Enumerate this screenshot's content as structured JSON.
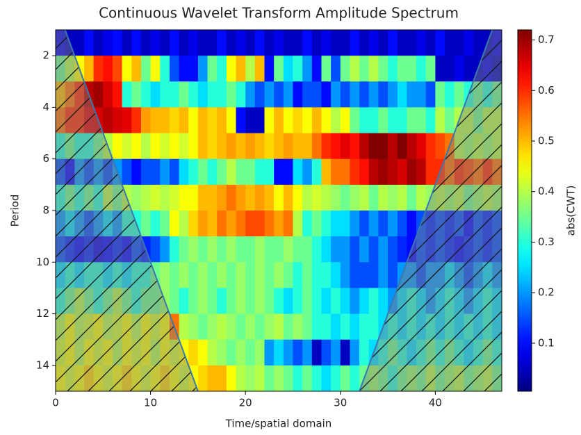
{
  "chart_data": {
    "type": "heatmap",
    "title": "Continuous Wavelet Transform Amplitude Spectrum",
    "x_label": "Time/spatial domain",
    "y_label": "Period",
    "colormap": "jet",
    "xlim": [
      0,
      47
    ],
    "ylim": [
      15,
      1
    ],
    "xticks": [
      0,
      10,
      20,
      30,
      40
    ],
    "yticks": [
      2,
      4,
      6,
      8,
      10,
      12,
      14
    ],
    "colorbar": {
      "label": "abs(CWT)",
      "lim": [
        0.005,
        0.72
      ],
      "ticks": [
        0.1,
        0.2,
        0.3,
        0.4,
        0.5,
        0.6,
        0.7
      ]
    },
    "cone_of_influence": {
      "left": {
        "x": [
          1,
          15
        ],
        "y": [
          1,
          15
        ]
      },
      "right": {
        "x": [
          46,
          32
        ],
        "y": [
          1,
          15
        ]
      }
    },
    "z": [
      [
        0.08,
        0.05,
        0.05,
        0.1,
        0.05,
        0.08,
        0.1,
        0.05,
        0.1,
        0.05,
        0.08,
        0.05,
        0.1,
        0.05,
        0.08,
        0.05,
        0.05,
        0.1,
        0.05,
        0.08,
        0.05,
        0.1,
        0.05,
        0.08,
        0.05,
        0.05,
        0.1,
        0.05,
        0.08,
        0.05,
        0.05,
        0.1,
        0.05,
        0.08,
        0.05,
        0.1,
        0.05,
        0.05,
        0.08,
        0.05,
        0.1,
        0.05,
        0.05,
        0.08,
        0.05,
        0.05,
        0.08
      ],
      [
        0.35,
        0.4,
        0.45,
        0.5,
        0.6,
        0.62,
        0.58,
        0.45,
        0.5,
        0.35,
        0.45,
        0.3,
        0.15,
        0.1,
        0.1,
        0.2,
        0.35,
        0.3,
        0.45,
        0.5,
        0.4,
        0.5,
        0.1,
        0.35,
        0.25,
        0.3,
        0.2,
        0.1,
        0.35,
        0.15,
        0.35,
        0.4,
        0.35,
        0.4,
        0.35,
        0.3,
        0.35,
        0.35,
        0.3,
        0.35,
        0.05,
        0.05,
        0.08,
        0.05,
        0.05,
        0.08,
        0.05
      ],
      [
        0.5,
        0.55,
        0.6,
        0.68,
        0.7,
        0.66,
        0.62,
        0.3,
        0.35,
        0.3,
        0.25,
        0.3,
        0.3,
        0.35,
        0.3,
        0.25,
        0.3,
        0.3,
        0.35,
        0.3,
        0.2,
        0.15,
        0.2,
        0.15,
        0.2,
        0.1,
        0.15,
        0.15,
        0.1,
        0.2,
        0.15,
        0.2,
        0.15,
        0.2,
        0.15,
        0.2,
        0.25,
        0.2,
        0.2,
        0.15,
        0.35,
        0.3,
        0.35,
        0.3,
        0.35,
        0.3,
        0.35
      ],
      [
        0.55,
        0.6,
        0.6,
        0.65,
        0.66,
        0.68,
        0.66,
        0.65,
        0.6,
        0.52,
        0.5,
        0.5,
        0.48,
        0.5,
        0.45,
        0.5,
        0.48,
        0.5,
        0.45,
        0.1,
        0.05,
        0.05,
        0.45,
        0.5,
        0.45,
        0.48,
        0.45,
        0.5,
        0.45,
        0.4,
        0.45,
        0.35,
        0.3,
        0.3,
        0.35,
        0.3,
        0.3,
        0.35,
        0.35,
        0.3,
        0.4,
        0.35,
        0.4,
        0.4,
        0.35,
        0.4,
        0.4
      ],
      [
        0.3,
        0.35,
        0.3,
        0.3,
        0.35,
        0.4,
        0.45,
        0.42,
        0.45,
        0.4,
        0.45,
        0.42,
        0.45,
        0.42,
        0.45,
        0.5,
        0.48,
        0.5,
        0.52,
        0.5,
        0.52,
        0.5,
        0.48,
        0.5,
        0.52,
        0.5,
        0.5,
        0.55,
        0.6,
        0.62,
        0.65,
        0.62,
        0.68,
        0.72,
        0.72,
        0.68,
        0.72,
        0.68,
        0.65,
        0.6,
        0.58,
        0.55,
        0.4,
        0.38,
        0.4,
        0.38,
        0.4
      ],
      [
        0.15,
        0.1,
        0.2,
        0.15,
        0.2,
        0.15,
        0.2,
        0.15,
        0.1,
        0.15,
        0.15,
        0.2,
        0.15,
        0.25,
        0.3,
        0.35,
        0.3,
        0.35,
        0.4,
        0.35,
        0.35,
        0.3,
        0.3,
        0.1,
        0.1,
        0.25,
        0.2,
        0.3,
        0.5,
        0.55,
        0.55,
        0.6,
        0.62,
        0.68,
        0.7,
        0.68,
        0.66,
        0.7,
        0.68,
        0.6,
        0.6,
        0.55,
        0.6,
        0.58,
        0.55,
        0.6,
        0.55
      ],
      [
        0.3,
        0.35,
        0.3,
        0.35,
        0.3,
        0.4,
        0.35,
        0.4,
        0.38,
        0.4,
        0.42,
        0.4,
        0.42,
        0.45,
        0.45,
        0.5,
        0.5,
        0.52,
        0.55,
        0.52,
        0.5,
        0.52,
        0.5,
        0.45,
        0.5,
        0.45,
        0.4,
        0.42,
        0.4,
        0.38,
        0.35,
        0.38,
        0.4,
        0.35,
        0.4,
        0.38,
        0.4,
        0.35,
        0.4,
        0.38,
        0.4,
        0.38,
        0.4,
        0.35,
        0.38,
        0.4,
        0.38
      ],
      [
        0.2,
        0.25,
        0.2,
        0.15,
        0.2,
        0.25,
        0.2,
        0.3,
        0.3,
        0.35,
        0.3,
        0.35,
        0.45,
        0.4,
        0.48,
        0.52,
        0.5,
        0.55,
        0.52,
        0.55,
        0.58,
        0.58,
        0.55,
        0.52,
        0.55,
        0.4,
        0.3,
        0.35,
        0.3,
        0.25,
        0.25,
        0.2,
        0.15,
        0.2,
        0.15,
        0.2,
        0.15,
        0.1,
        0.15,
        0.12,
        0.15,
        0.12,
        0.15,
        0.1,
        0.15,
        0.12,
        0.15
      ],
      [
        0.15,
        0.12,
        0.1,
        0.12,
        0.08,
        0.1,
        0.12,
        0.1,
        0.15,
        0.12,
        0.15,
        0.2,
        0.3,
        0.35,
        0.38,
        0.35,
        0.38,
        0.35,
        0.38,
        0.35,
        0.35,
        0.38,
        0.35,
        0.35,
        0.38,
        0.35,
        0.35,
        0.3,
        0.25,
        0.2,
        0.2,
        0.15,
        0.2,
        0.15,
        0.2,
        0.15,
        0.12,
        0.1,
        0.15,
        0.12,
        0.15,
        0.12,
        0.1,
        0.12,
        0.15,
        0.12,
        0.15
      ],
      [
        0.25,
        0.3,
        0.25,
        0.3,
        0.3,
        0.25,
        0.3,
        0.25,
        0.3,
        0.3,
        0.35,
        0.38,
        0.35,
        0.38,
        0.35,
        0.38,
        0.35,
        0.38,
        0.35,
        0.38,
        0.35,
        0.38,
        0.35,
        0.38,
        0.35,
        0.3,
        0.35,
        0.3,
        0.3,
        0.25,
        0.2,
        0.15,
        0.15,
        0.15,
        0.2,
        0.15,
        0.2,
        0.2,
        0.15,
        0.2,
        0.2,
        0.25,
        0.2,
        0.15,
        0.2,
        0.25,
        0.2
      ],
      [
        0.3,
        0.35,
        0.4,
        0.35,
        0.3,
        0.35,
        0.4,
        0.35,
        0.3,
        0.35,
        0.35,
        0.38,
        0.35,
        0.3,
        0.35,
        0.38,
        0.35,
        0.3,
        0.35,
        0.38,
        0.35,
        0.38,
        0.35,
        0.3,
        0.25,
        0.3,
        0.35,
        0.3,
        0.25,
        0.3,
        0.25,
        0.2,
        0.25,
        0.3,
        0.25,
        0.2,
        0.25,
        0.3,
        0.25,
        0.2,
        0.25,
        0.3,
        0.25,
        0.2,
        0.25,
        0.3,
        0.25
      ],
      [
        0.4,
        0.45,
        0.4,
        0.42,
        0.45,
        0.4,
        0.42,
        0.45,
        0.4,
        0.45,
        0.42,
        0.45,
        0.55,
        0.4,
        0.38,
        0.35,
        0.38,
        0.4,
        0.38,
        0.35,
        0.38,
        0.35,
        0.38,
        0.4,
        0.35,
        0.38,
        0.35,
        0.3,
        0.3,
        0.25,
        0.3,
        0.25,
        0.3,
        0.3,
        0.25,
        0.3,
        0.25,
        0.3,
        0.25,
        0.3,
        0.25,
        0.3,
        0.25,
        0.3,
        0.25,
        0.3,
        0.25
      ],
      [
        0.42,
        0.45,
        0.4,
        0.45,
        0.42,
        0.45,
        0.4,
        0.45,
        0.42,
        0.45,
        0.4,
        0.45,
        0.42,
        0.45,
        0.48,
        0.45,
        0.4,
        0.38,
        0.35,
        0.38,
        0.35,
        0.38,
        0.2,
        0.25,
        0.2,
        0.15,
        0.2,
        0.05,
        0.15,
        0.2,
        0.05,
        0.2,
        0.3,
        0.25,
        0.3,
        0.35,
        0.3,
        0.25,
        0.3,
        0.35,
        0.3,
        0.35,
        0.3,
        0.25,
        0.3,
        0.35,
        0.3
      ],
      [
        0.45,
        0.42,
        0.45,
        0.48,
        0.45,
        0.42,
        0.45,
        0.48,
        0.45,
        0.42,
        0.45,
        0.48,
        0.45,
        0.42,
        0.45,
        0.48,
        0.5,
        0.5,
        0.45,
        0.4,
        0.38,
        0.4,
        0.35,
        0.38,
        0.35,
        0.3,
        0.35,
        0.3,
        0.25,
        0.3,
        0.35,
        0.3,
        0.35,
        0.38,
        0.35,
        0.3,
        0.35,
        0.38,
        0.35,
        0.4,
        0.35,
        0.38,
        0.4,
        0.35,
        0.38,
        0.4,
        0.35
      ]
    ]
  }
}
